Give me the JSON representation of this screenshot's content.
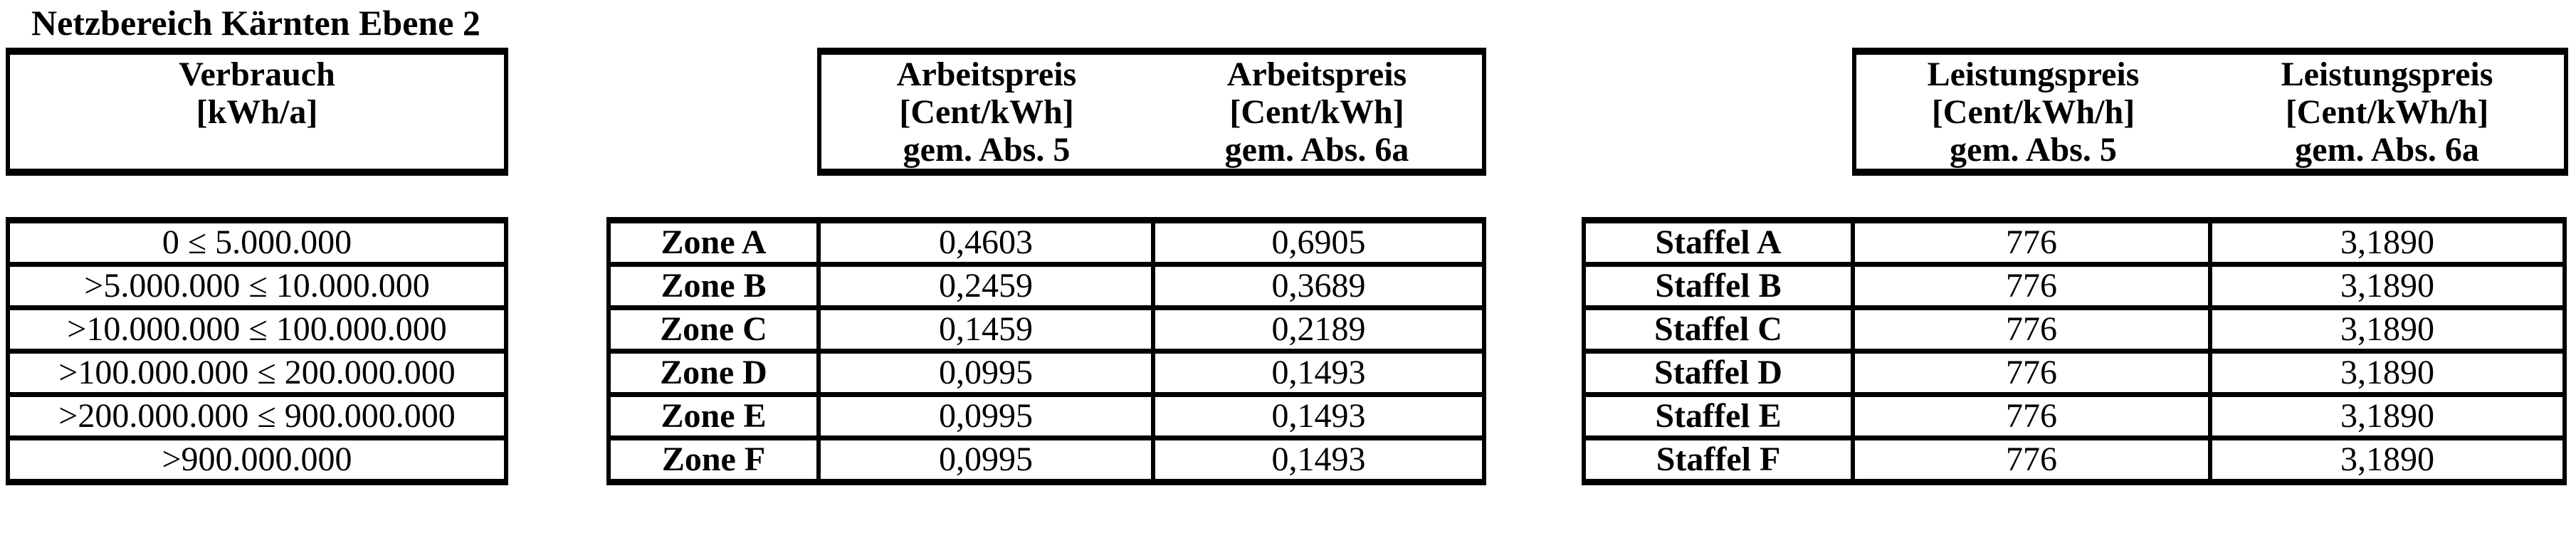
{
  "title": "Netzbereich Kärnten Ebene 2",
  "verbrauch": {
    "header": {
      "line1": "Verbrauch",
      "line2": "[kWh/a]"
    },
    "rows": [
      "0 ≤ 5.000.000",
      ">5.000.000 ≤ 10.000.000",
      ">10.000.000 ≤ 100.000.000",
      ">100.000.000 ≤ 200.000.000",
      ">200.000.000 ≤ 900.000.000",
      ">900.000.000"
    ]
  },
  "arbeitspreis": {
    "col1_header": {
      "line1": "Arbeitspreis",
      "line2": "[Cent/kWh]",
      "line3": "gem. Abs. 5"
    },
    "col2_header": {
      "line1": "Arbeitspreis",
      "line2": "[Cent/kWh]",
      "line3": "gem. Abs. 6a"
    },
    "rows": [
      {
        "label": "Zone A",
        "abs5": "0,4603",
        "abs6a": "0,6905"
      },
      {
        "label": "Zone B",
        "abs5": "0,2459",
        "abs6a": "0,3689"
      },
      {
        "label": "Zone C",
        "abs5": "0,1459",
        "abs6a": "0,2189"
      },
      {
        "label": "Zone D",
        "abs5": "0,0995",
        "abs6a": "0,1493"
      },
      {
        "label": "Zone E",
        "abs5": "0,0995",
        "abs6a": "0,1493"
      },
      {
        "label": "Zone F",
        "abs5": "0,0995",
        "abs6a": "0,1493"
      }
    ]
  },
  "leistungspreis": {
    "col1_header": {
      "line1": "Leistungspreis",
      "line2": "[Cent/kWh/h]",
      "line3": "gem. Abs. 5"
    },
    "col2_header": {
      "line1": "Leistungspreis",
      "line2": "[Cent/kWh/h]",
      "line3": "gem. Abs. 6a"
    },
    "rows": [
      {
        "label": "Staffel A",
        "abs5": "776",
        "abs6a": "3,1890"
      },
      {
        "label": "Staffel B",
        "abs5": "776",
        "abs6a": "3,1890"
      },
      {
        "label": "Staffel C",
        "abs5": "776",
        "abs6a": "3,1890"
      },
      {
        "label": "Staffel D",
        "abs5": "776",
        "abs6a": "3,1890"
      },
      {
        "label": "Staffel E",
        "abs5": "776",
        "abs6a": "3,1890"
      },
      {
        "label": "Staffel F",
        "abs5": "776",
        "abs6a": "3,1890"
      }
    ]
  }
}
